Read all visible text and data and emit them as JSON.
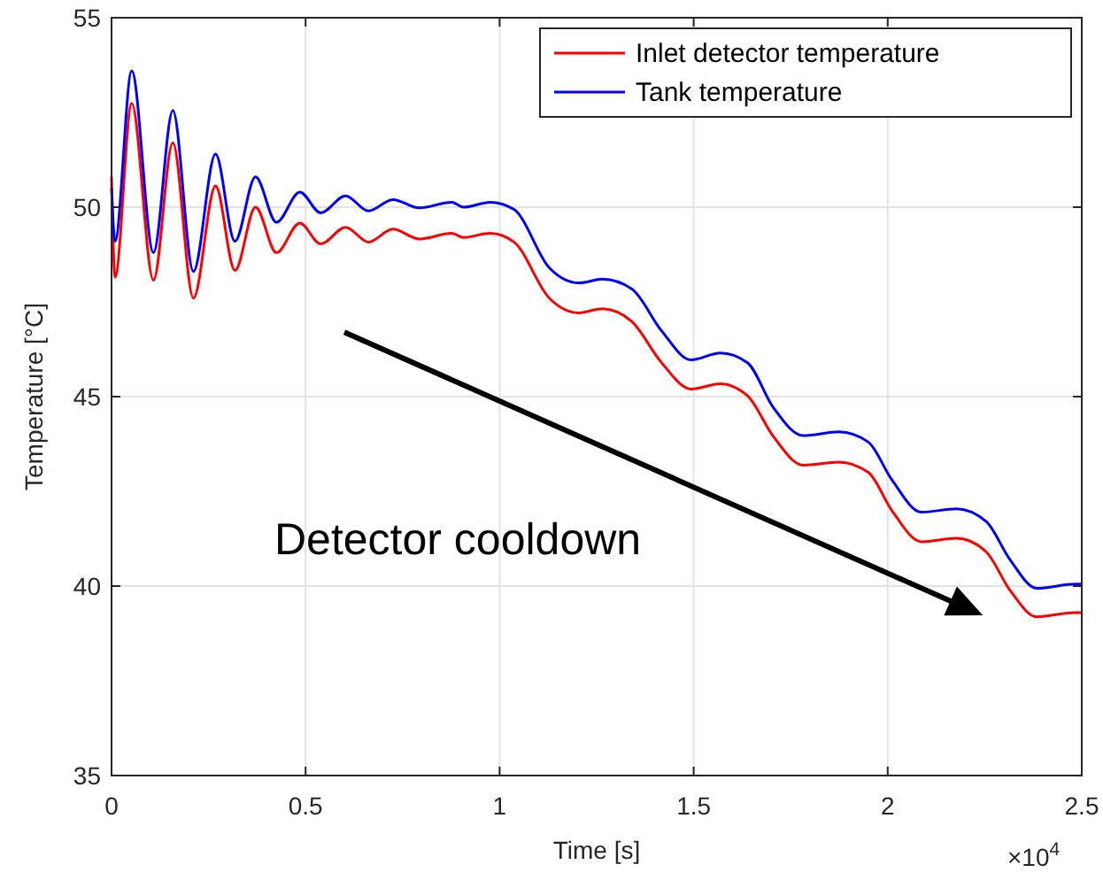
{
  "chart_data": {
    "type": "line",
    "xlabel": "Time [s]",
    "ylabel": "Temperature [°C]",
    "xlim": [
      0,
      2.5
    ],
    "ylim": [
      35,
      55
    ],
    "xticks": [
      0,
      0.5,
      1,
      1.5,
      2,
      2.5
    ],
    "yticks": [
      35,
      40,
      45,
      50,
      55
    ],
    "grid": true,
    "legend": "top right",
    "marker": "none",
    "line_style": "solid",
    "annotations": [
      "Detector cooldown",
      "×10$^{4}$"
    ],
    "series": [
      {
        "name": "Inlet detector temperature",
        "color": "#ff0000",
        "x": [
          0,
          0.009,
          0.052,
          0.108,
          0.158,
          0.211,
          0.268,
          0.318,
          0.371,
          0.425,
          0.485,
          0.539,
          0.603,
          0.662,
          0.725,
          0.793,
          0.877,
          0.907,
          0.976,
          1.037,
          1.128,
          1.204,
          1.265,
          1.341,
          1.417,
          1.493,
          1.569,
          1.638,
          1.706,
          1.782,
          1.874,
          1.95,
          2.011,
          2.087,
          2.178,
          2.254,
          2.315,
          2.384,
          2.483,
          2.5
        ],
        "values": [
          50.8,
          48.15,
          52.74,
          48.07,
          51.7,
          47.6,
          50.56,
          48.33,
          50.0,
          48.8,
          49.58,
          49.03,
          49.47,
          49.08,
          49.42,
          49.16,
          49.31,
          49.2,
          49.31,
          49.08,
          47.6,
          47.21,
          47.32,
          46.98,
          45.9,
          45.2,
          45.34,
          45.03,
          43.94,
          43.19,
          43.27,
          43.0,
          41.99,
          41.17,
          41.26,
          40.9,
          39.89,
          39.19,
          39.3,
          39.3
        ]
      },
      {
        "name": "Tank temperature",
        "color": "#0000ff",
        "x": [
          0,
          0.009,
          0.052,
          0.108,
          0.158,
          0.211,
          0.268,
          0.318,
          0.371,
          0.425,
          0.485,
          0.539,
          0.603,
          0.662,
          0.725,
          0.793,
          0.877,
          0.907,
          0.976,
          1.037,
          1.128,
          1.204,
          1.265,
          1.341,
          1.417,
          1.493,
          1.569,
          1.638,
          1.706,
          1.782,
          1.874,
          1.95,
          2.011,
          2.087,
          2.178,
          2.254,
          2.315,
          2.384,
          2.483,
          2.5
        ],
        "values": [
          50.5,
          49.1,
          53.6,
          48.8,
          52.55,
          48.3,
          51.4,
          49.1,
          50.8,
          49.6,
          50.4,
          49.85,
          50.3,
          49.9,
          50.2,
          49.98,
          50.13,
          50.0,
          50.13,
          49.94,
          48.4,
          48.0,
          48.1,
          47.84,
          46.74,
          45.97,
          46.15,
          45.9,
          44.7,
          43.97,
          44.07,
          43.8,
          42.8,
          41.95,
          42.04,
          41.7,
          40.7,
          39.94,
          40.05,
          40.05
        ]
      }
    ]
  }
}
